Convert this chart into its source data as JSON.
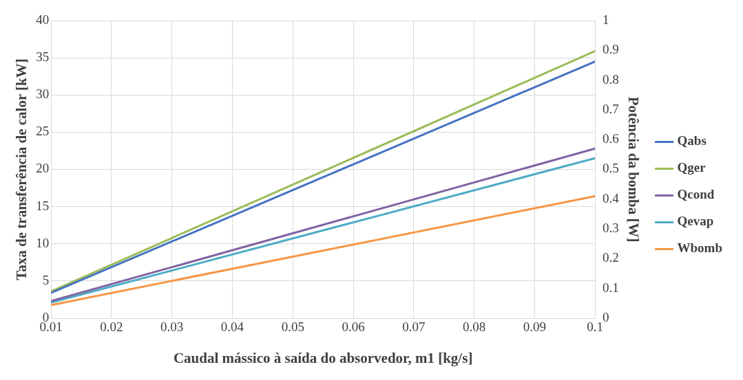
{
  "chart_data": {
    "type": "line",
    "xlabel": "Caudal mássico à saída do absorvedor, m1 [kg/s]",
    "ylabel": "Taxa de transferência de calor [kW]",
    "y2label": "Potência da bomba [W]",
    "x": [
      0.01,
      0.1
    ],
    "series": [
      {
        "name": "Qabs",
        "color": "#4472c4",
        "values": [
          3.4,
          34.5
        ]
      },
      {
        "name": "Qger",
        "color": "#9bbb59",
        "values": [
          3.6,
          35.9
        ]
      },
      {
        "name": "Qcond",
        "color": "#8064a2",
        "values": [
          2.3,
          22.8
        ]
      },
      {
        "name": "Qevap",
        "color": "#4bacc6",
        "values": [
          2.1,
          21.5
        ]
      },
      {
        "name": "Wbomb",
        "color": "#f79646",
        "axis": "y2",
        "values": [
          0.044,
          0.41
        ]
      }
    ],
    "xlim": [
      0.01,
      0.1
    ],
    "xticks": [
      0.01,
      0.02,
      0.03,
      0.04,
      0.05,
      0.06,
      0.07,
      0.08,
      0.09,
      0.1
    ],
    "ylim": [
      0,
      40
    ],
    "yticks": [
      0,
      5,
      10,
      15,
      20,
      25,
      30,
      35,
      40
    ],
    "y2lim": [
      0,
      1
    ],
    "y2ticks": [
      0,
      0.1,
      0.2,
      0.3,
      0.4,
      0.5,
      0.6,
      0.7,
      0.8,
      0.9,
      1
    ],
    "grid": true,
    "legend": "right",
    "marker": "none",
    "line_style": "solid"
  }
}
